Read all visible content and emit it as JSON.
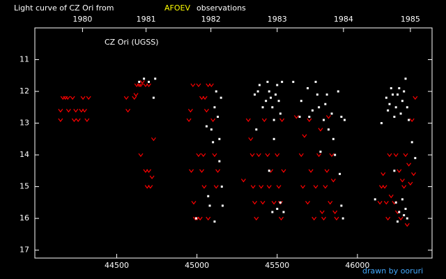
{
  "chart_data": {
    "type": "scatter",
    "title": "Light curve of CZ Ori from",
    "title_highlight": "AFOEV",
    "title_end": "observations",
    "annotation": "CZ Ori (UGSS)",
    "footer": "drawn by ooruri",
    "xlim": [
      43990,
      46465
    ],
    "ylim": [
      17.25,
      10.0
    ],
    "xticks": [
      44500,
      45000,
      45500,
      46000
    ],
    "yticks": [
      11,
      12,
      13,
      14,
      15,
      16,
      17
    ],
    "x2ticks": [
      {
        "value": 44287,
        "label": "1980"
      },
      {
        "value": 44683,
        "label": "1981"
      },
      {
        "value": 45087,
        "label": "1982"
      },
      {
        "value": 45500,
        "label": "1983"
      },
      {
        "value": 45913,
        "label": "1984"
      },
      {
        "value": 46330,
        "label": "1985"
      }
    ],
    "series": [
      {
        "color": "#ff0000",
        "marker": "v",
        "x": [
          44150,
          44150,
          44165,
          44180,
          44195,
          44200,
          44225,
          44235,
          44245,
          44260,
          44280,
          44290,
          44300,
          44315,
          44325,
          44560,
          44570,
          44610,
          44620,
          44625,
          44640,
          44650,
          44660,
          44680,
          44700,
          44650,
          44680,
          44700,
          44690,
          44710,
          44720,
          44730,
          44950,
          44960,
          44965,
          44975,
          44980,
          44990,
          45000,
          45010,
          45020,
          45030,
          45040,
          45045,
          45050,
          45060,
          45070,
          45090,
          45100,
          45110,
          45120,
          45130,
          45070,
          45010,
          45030,
          45290,
          45320,
          45335,
          45345,
          45350,
          45360,
          45370,
          45385,
          45400,
          45410,
          45420,
          45440,
          45450,
          45460,
          45480,
          45500,
          45510,
          45520,
          45525,
          45530,
          45540,
          45620,
          45650,
          45660,
          45670,
          45690,
          45700,
          45710,
          45730,
          45740,
          45760,
          45770,
          45780,
          45790,
          45800,
          45810,
          45820,
          45830,
          45840,
          45850,
          45860,
          45870,
          46140,
          46150,
          46160,
          46170,
          46180,
          46190,
          46200,
          46210,
          46230,
          46240,
          46250,
          46260,
          46270,
          46280,
          46290,
          46300,
          46310,
          46320,
          46330,
          46340,
          46350,
          46360
        ],
        "values": [
          12.6,
          12.9,
          12.2,
          12.2,
          12.2,
          12.6,
          12.2,
          12.9,
          12.6,
          12.9,
          12.6,
          12.2,
          12.6,
          12.9,
          12.2,
          12.2,
          12.6,
          12.2,
          12.1,
          11.8,
          11.8,
          11.8,
          11.7,
          11.8,
          11.8,
          14.0,
          14.5,
          14.5,
          15.0,
          15.0,
          14.7,
          13.5,
          12.9,
          12.6,
          14.5,
          11.8,
          15.5,
          16.0,
          16.0,
          14.0,
          16.0,
          14.5,
          14.0,
          15.0,
          12.2,
          12.6,
          11.8,
          11.8,
          12.9,
          14.0,
          15.0,
          14.5,
          16.0,
          11.8,
          12.2,
          14.8,
          12.9,
          13.5,
          14.0,
          15.0,
          15.5,
          16.0,
          14.0,
          15.0,
          15.5,
          12.9,
          14.0,
          15.0,
          14.5,
          15.5,
          14.0,
          15.0,
          15.5,
          16.0,
          12.9,
          14.5,
          12.8,
          14.0,
          15.0,
          13.4,
          15.5,
          12.9,
          14.5,
          16.0,
          15.0,
          14.0,
          13.2,
          15.8,
          16.0,
          15.0,
          14.5,
          12.8,
          15.5,
          14.0,
          14.8,
          15.8,
          16.0,
          15.5,
          15.0,
          14.6,
          15.0,
          15.5,
          16.0,
          14.0,
          15.3,
          15.5,
          14.0,
          15.8,
          14.5,
          16.0,
          14.8,
          15.0,
          14.0,
          16.2,
          14.3,
          14.9,
          12.9,
          14.6,
          12.2
        ]
      },
      {
        "color": "#ffffff",
        "marker": "dot",
        "x": [
          44640,
          44670,
          44700,
          44740,
          44730,
          44995,
          45060,
          45070,
          45080,
          45090,
          45100,
          45110,
          45120,
          45130,
          45140,
          45150,
          45155,
          45160,
          45140,
          45110,
          45360,
          45370,
          45380,
          45390,
          45410,
          45430,
          45440,
          45450,
          45460,
          45470,
          45480,
          45490,
          45500,
          45510,
          45520,
          45530,
          45470,
          45500,
          45520,
          45540,
          45450,
          45480,
          45600,
          45640,
          45650,
          45690,
          45700,
          45720,
          45740,
          45750,
          45760,
          45770,
          45790,
          45800,
          45810,
          45820,
          45840,
          45850,
          45860,
          45880,
          45890,
          45900,
          45910,
          45900,
          45920,
          46110,
          46150,
          46180,
          46190,
          46200,
          46210,
          46220,
          46230,
          46240,
          46250,
          46260,
          46270,
          46280,
          46290,
          46300,
          46310,
          46320,
          46340,
          46360,
          46240,
          46260,
          46280,
          46300,
          46310,
          46290,
          46230,
          46250
        ],
        "values": [
          11.7,
          11.6,
          11.7,
          11.6,
          12.2,
          16.0,
          13.1,
          15.3,
          15.6,
          13.2,
          13.6,
          12.5,
          12.0,
          12.8,
          13.5,
          12.2,
          15.0,
          15.6,
          14.2,
          16.1,
          12.1,
          13.2,
          12.0,
          11.8,
          12.5,
          12.3,
          11.7,
          12.0,
          12.2,
          12.5,
          12.9,
          12.1,
          11.8,
          12.3,
          12.7,
          11.7,
          15.8,
          15.7,
          15.5,
          15.8,
          14.5,
          13.5,
          11.7,
          12.8,
          12.3,
          11.9,
          12.8,
          12.6,
          11.7,
          12.1,
          12.5,
          13.9,
          12.9,
          12.4,
          12.1,
          13.2,
          12.7,
          13.5,
          14.0,
          12.0,
          14.6,
          15.6,
          16.0,
          12.8,
          12.9,
          15.4,
          13.0,
          12.2,
          12.6,
          12.4,
          11.9,
          12.1,
          12.8,
          12.5,
          12.1,
          11.9,
          12.7,
          12.3,
          12.0,
          11.6,
          12.5,
          12.9,
          13.6,
          14.1,
          15.5,
          15.8,
          15.4,
          15.7,
          16.0,
          15.9,
          14.5,
          16.1
        ]
      }
    ]
  }
}
